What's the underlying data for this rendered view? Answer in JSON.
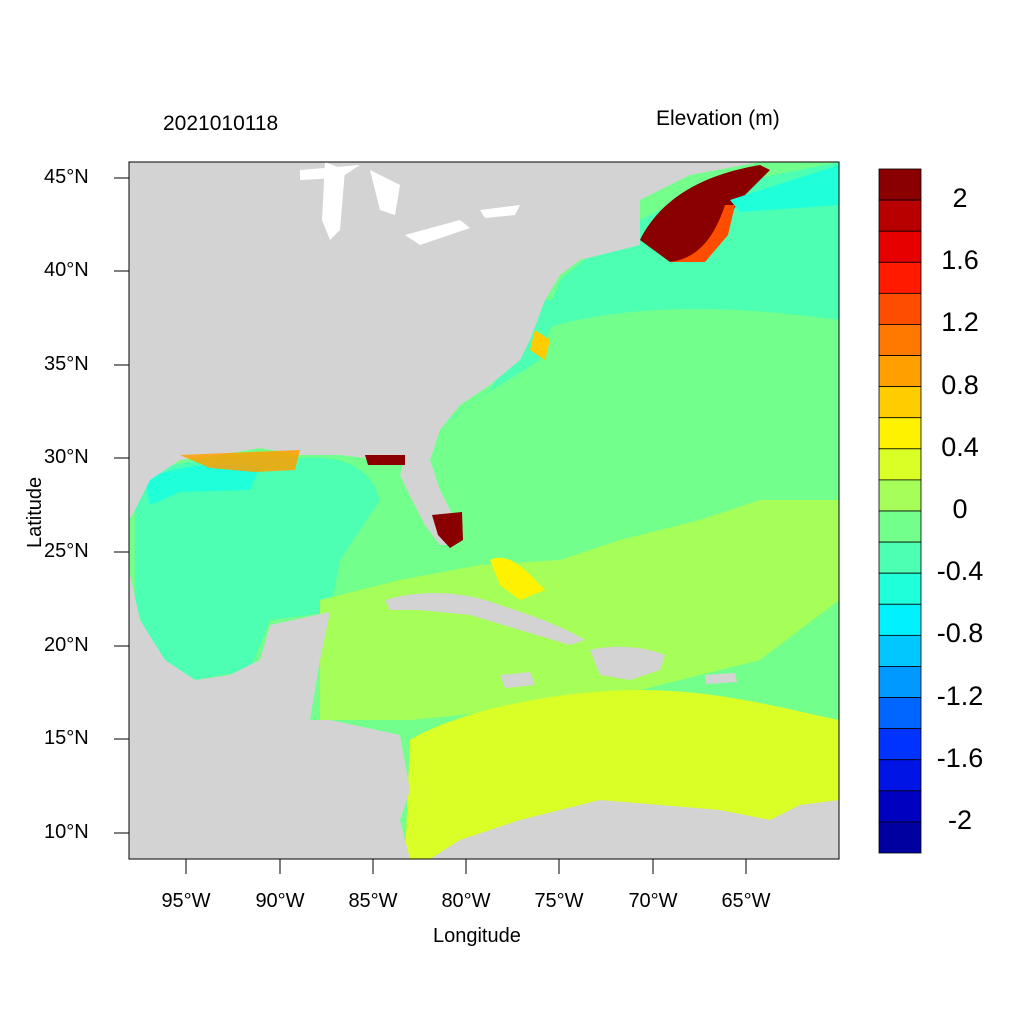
{
  "map": {
    "timestamp": "2021010118",
    "variable_title": "Elevation (m)",
    "xlabel": "Longitude",
    "ylabel": "Latitude",
    "lat_ticks": [
      "45°N",
      "40°N",
      "35°N",
      "30°N",
      "25°N",
      "20°N",
      "15°N",
      "10°N"
    ],
    "lon_ticks": [
      "95°W",
      "90°W",
      "85°W",
      "80°W",
      "75°W",
      "70°W",
      "65°W"
    ],
    "extent": {
      "lon": [
        -98,
        -60
      ],
      "lat": [
        8.5,
        46
      ]
    }
  },
  "colorbar": {
    "labels": [
      "2",
      "1.6",
      "1.2",
      "0.8",
      "0.4",
      "0",
      "-0.4",
      "-0.8",
      "-1.2",
      "-1.6",
      "-2"
    ],
    "colors": [
      "#8a0000",
      "#b80000",
      "#e60000",
      "#ff1a00",
      "#ff4d00",
      "#ff7800",
      "#ffa000",
      "#ffcc00",
      "#fff200",
      "#d9ff26",
      "#a6ff59",
      "#73ff8c",
      "#4dffb3",
      "#1fffd9",
      "#00f2ff",
      "#00c8ff",
      "#0099ff",
      "#0066ff",
      "#0033ff",
      "#0014e6",
      "#0000c0",
      "#0000a0"
    ]
  },
  "styles": {
    "land": "#d3d3d3",
    "water_inland": "#ffffff"
  }
}
